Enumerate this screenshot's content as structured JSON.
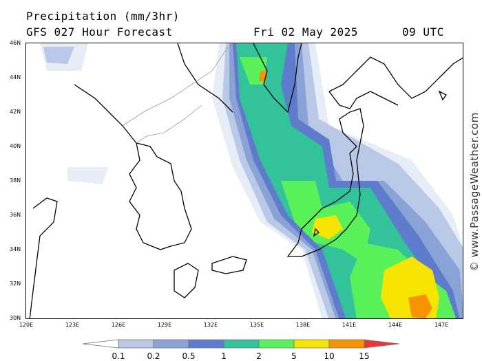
{
  "header": {
    "title": "Precipitation (mm/3hr)",
    "model": "GFS 027 Hour Forecast",
    "date": "Fri 02 May 2025",
    "time": "09 UTC"
  },
  "axes": {
    "lat_labels": [
      "46N",
      "44N",
      "42N",
      "40N",
      "38N",
      "36N",
      "34N",
      "32N",
      "30N"
    ],
    "lon_labels": [
      "120E",
      "123E",
      "126E",
      "129E",
      "132E",
      "135E",
      "138E",
      "141E",
      "144E",
      "147E"
    ]
  },
  "credit": "© www.PassageWeather.com",
  "legend": {
    "labels": [
      "0.1",
      "0.2",
      "0.5",
      "1",
      "2",
      "5",
      "10",
      "15"
    ],
    "colors": [
      "#e6edf7",
      "#b8c8e6",
      "#8aa3d6",
      "#5f7ccc",
      "#33c39a",
      "#5af05a",
      "#f5e400",
      "#f59400",
      "#e8363a"
    ]
  },
  "map": {
    "region": "Japan / Korea / NE China",
    "lat_range": [
      30,
      46
    ],
    "lon_range": [
      120,
      148.5
    ]
  }
}
